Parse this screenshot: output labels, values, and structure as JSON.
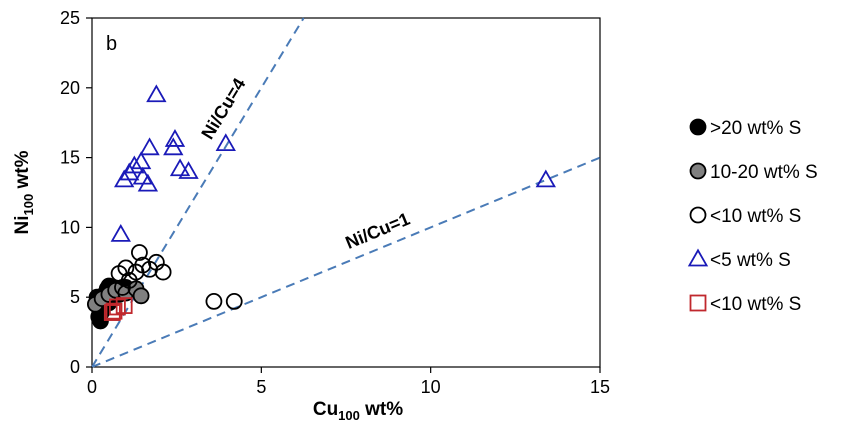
{
  "chart_data": {
    "type": "scatter",
    "panel_label": "b",
    "xlabel": {
      "main": "Cu",
      "sub": "100",
      "unit": " wt%"
    },
    "ylabel": {
      "main": "Ni",
      "sub": "100",
      "unit": " wt%"
    },
    "xlim": [
      0,
      15
    ],
    "ylim": [
      0,
      25
    ],
    "x_ticks": [
      0,
      5,
      10,
      15
    ],
    "y_ticks": [
      0,
      5,
      10,
      15,
      20,
      25
    ],
    "grid": false,
    "legend_position": "right",
    "reference_lines": [
      {
        "name": "Ni/Cu=4",
        "slope": 4,
        "color": "#4a7bb7"
      },
      {
        "name": "Ni/Cu=1",
        "slope": 1,
        "color": "#4a7bb7"
      }
    ],
    "series": [
      {
        "name": ">20 wt% S",
        "marker": "circle",
        "fill": "#000000",
        "stroke": "#000000",
        "points": [
          [
            0.2,
            3.6
          ],
          [
            0.25,
            3.3
          ],
          [
            0.3,
            4.0
          ],
          [
            0.35,
            4.8
          ],
          [
            0.4,
            5.3
          ],
          [
            0.45,
            5.6
          ],
          [
            0.5,
            5.8
          ],
          [
            0.55,
            5.5
          ],
          [
            0.6,
            5.1
          ],
          [
            0.7,
            5.6
          ],
          [
            0.8,
            5.2
          ],
          [
            0.9,
            5.4
          ],
          [
            1.0,
            5.7
          ],
          [
            0.3,
            4.4
          ],
          [
            0.15,
            5.0
          ],
          [
            0.5,
            4.6
          ]
        ]
      },
      {
        "name": "10-20 wt% S",
        "marker": "circle",
        "fill": "#808080",
        "stroke": "#000000",
        "points": [
          [
            0.1,
            4.5
          ],
          [
            0.3,
            4.9
          ],
          [
            0.5,
            5.2
          ],
          [
            0.7,
            5.5
          ],
          [
            1.0,
            5.3
          ],
          [
            1.3,
            5.6
          ],
          [
            1.45,
            5.1
          ]
        ]
      },
      {
        "name": "<10 wt% S",
        "marker": "circle",
        "fill": "none",
        "stroke": "#000000",
        "points": [
          [
            0.8,
            6.7
          ],
          [
            1.0,
            7.1
          ],
          [
            1.1,
            6.2
          ],
          [
            1.3,
            6.8
          ],
          [
            1.4,
            8.2
          ],
          [
            1.5,
            7.3
          ],
          [
            1.7,
            7.0
          ],
          [
            1.9,
            7.5
          ],
          [
            2.1,
            6.8
          ],
          [
            0.9,
            5.7
          ],
          [
            3.6,
            4.7
          ],
          [
            4.2,
            4.7
          ]
        ]
      },
      {
        "name": "<5 wt% S",
        "marker": "triangle",
        "fill": "none",
        "stroke": "#1a1ab8",
        "points": [
          [
            0.85,
            9.5
          ],
          [
            0.95,
            13.4
          ],
          [
            1.1,
            13.9
          ],
          [
            1.25,
            14.4
          ],
          [
            1.45,
            14.7
          ],
          [
            1.5,
            13.6
          ],
          [
            1.65,
            13.1
          ],
          [
            1.7,
            15.7
          ],
          [
            1.9,
            19.5
          ],
          [
            2.4,
            15.7
          ],
          [
            2.45,
            16.3
          ],
          [
            2.6,
            14.2
          ],
          [
            2.85,
            14.0
          ],
          [
            3.95,
            16.0
          ],
          [
            13.4,
            13.4
          ]
        ]
      },
      {
        "name": "<10 wt% S",
        "marker": "square",
        "fill": "none",
        "stroke": "#c0282d",
        "points": [
          [
            0.6,
            3.9
          ],
          [
            0.75,
            4.3
          ],
          [
            0.95,
            4.4
          ],
          [
            0.65,
            4.0
          ]
        ]
      }
    ]
  }
}
